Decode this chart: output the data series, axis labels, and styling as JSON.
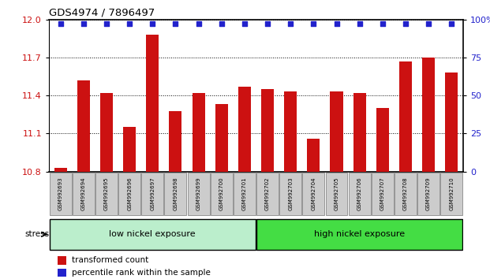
{
  "title": "GDS4974 / 7896497",
  "categories": [
    "GSM992693",
    "GSM992694",
    "GSM992695",
    "GSM992696",
    "GSM992697",
    "GSM992698",
    "GSM992699",
    "GSM992700",
    "GSM992701",
    "GSM992702",
    "GSM992703",
    "GSM992704",
    "GSM992705",
    "GSM992706",
    "GSM992707",
    "GSM992708",
    "GSM992709",
    "GSM992710"
  ],
  "values": [
    10.83,
    11.52,
    11.42,
    11.15,
    11.88,
    11.28,
    11.42,
    11.33,
    11.47,
    11.45,
    11.43,
    11.06,
    11.43,
    11.42,
    11.3,
    11.67,
    11.7,
    11.58
  ],
  "bar_color": "#cc1111",
  "dot_color": "#2222cc",
  "ylim": [
    10.8,
    12.0
  ],
  "yticks_left": [
    10.8,
    11.1,
    11.4,
    11.7,
    12.0
  ],
  "yticks_right": [
    0,
    25,
    50,
    75,
    100
  ],
  "right_ylim": [
    0,
    100
  ],
  "group1_label": "low nickel exposure",
  "group2_label": "high nickel exposure",
  "group1_count": 9,
  "group1_color": "#bbeecc",
  "group2_color": "#44dd44",
  "stress_label": "stress",
  "legend1": "transformed count",
  "legend2": "percentile rank within the sample",
  "bar_width": 0.55,
  "tick_label_bg": "#cccccc"
}
